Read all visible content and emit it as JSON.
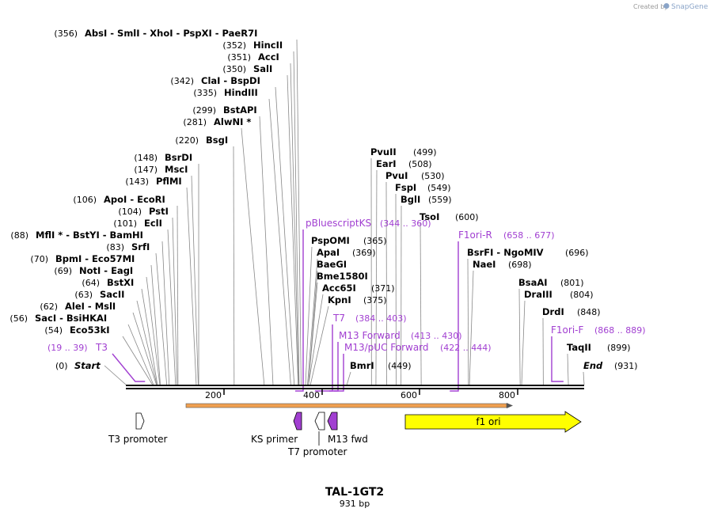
{
  "credit": {
    "prefix": "Created by",
    "brand": "SnapGene"
  },
  "title": "TAL-1GT2",
  "length": "931 bp",
  "axis": {
    "start": 0,
    "end": 931,
    "ticks": [
      "200",
      "400",
      "600",
      "800"
    ]
  },
  "start_label": {
    "pos": "(0)",
    "name": "Start"
  },
  "end_label": {
    "name": "End",
    "pos": "(931)"
  },
  "left_sites": [
    {
      "pos": "(356)",
      "names": "AbsI  -  SmlI  -  XhoI  -  PspXI  -  PaeR7I",
      "bp": 356
    },
    {
      "pos": "(352)",
      "names": "HincII",
      "bp": 352
    },
    {
      "pos": "(351)",
      "names": "AccI",
      "bp": 351
    },
    {
      "pos": "(350)",
      "names": "SalI",
      "bp": 350
    },
    {
      "pos": "(342)",
      "names": "ClaI  -  BspDI",
      "bp": 342
    },
    {
      "pos": "(335)",
      "names": "HindIII",
      "bp": 335
    },
    {
      "pos": "(299)",
      "names": "BstAPI",
      "bp": 299
    },
    {
      "pos": "(281)",
      "names": "AlwNI *",
      "bp": 281
    },
    {
      "pos": "(220)",
      "names": "BsgI",
      "bp": 220
    },
    {
      "pos": "(148)",
      "names": "BsrDI",
      "bp": 148
    },
    {
      "pos": "(147)",
      "names": "MscI",
      "bp": 147
    },
    {
      "pos": "(143)",
      "names": "PflMI",
      "bp": 143
    },
    {
      "pos": "(106)",
      "names": "ApoI  -  EcoRI",
      "bp": 106
    },
    {
      "pos": "(104)",
      "names": "PstI",
      "bp": 104
    },
    {
      "pos": "(101)",
      "names": "EclI",
      "bp": 101
    },
    {
      "pos": "(88)",
      "names": "MflI *  -  BstYI  -  BamHI",
      "bp": 88
    },
    {
      "pos": "(83)",
      "names": "SrfI",
      "bp": 83
    },
    {
      "pos": "(70)",
      "names": "BpmI  -  Eco57MI",
      "bp": 70
    },
    {
      "pos": "(69)",
      "names": "NotI  -  EagI",
      "bp": 69
    },
    {
      "pos": "(64)",
      "names": "BstXI",
      "bp": 64
    },
    {
      "pos": "(63)",
      "names": "SacII",
      "bp": 63
    },
    {
      "pos": "(62)",
      "names": "AleI  -  MslI",
      "bp": 62
    },
    {
      "pos": "(56)",
      "names": "SacI  -  BsiHKAI",
      "bp": 56
    },
    {
      "pos": "(54)",
      "names": "Eco53kI",
      "bp": 54
    }
  ],
  "right_sites": [
    {
      "names": "PvuII",
      "pos": "(499)",
      "bp": 499
    },
    {
      "names": "EarI",
      "pos": "(508)",
      "bp": 508
    },
    {
      "names": "PvuI",
      "pos": "(530)",
      "bp": 530
    },
    {
      "names": "FspI",
      "pos": "(549)",
      "bp": 549
    },
    {
      "names": "BglI",
      "pos": "(559)",
      "bp": 559
    },
    {
      "names": "TsoI",
      "pos": "(600)",
      "bp": 600
    },
    {
      "names": "PspOMI",
      "pos": "(365)",
      "bp": 365
    },
    {
      "names": "ApaI",
      "pos": "(369)",
      "bp": 369
    },
    {
      "names": "BaeGI",
      "pos": "",
      "bp": 371
    },
    {
      "names": "Bme1580I",
      "pos": "",
      "bp": 371
    },
    {
      "names": "Acc65I",
      "pos": "(371)",
      "bp": 371
    },
    {
      "names": "KpnI",
      "pos": "(375)",
      "bp": 375
    },
    {
      "names": "BmrI",
      "pos": "(449)",
      "bp": 449
    },
    {
      "names": "BsrFI  -  NgoMIV",
      "pos": "(696)",
      "bp": 696
    },
    {
      "names": "NaeI",
      "pos": "(698)",
      "bp": 698
    },
    {
      "names": "BsaAI",
      "pos": "(801)",
      "bp": 801
    },
    {
      "names": "DraIII",
      "pos": "(804)",
      "bp": 804
    },
    {
      "names": "DrdI",
      "pos": "(848)",
      "bp": 848
    },
    {
      "names": "TaqII",
      "pos": "(899)",
      "bp": 899
    }
  ],
  "primers": [
    {
      "name": "T3",
      "range": "(19 .. 39)",
      "from": 19,
      "to": 39
    },
    {
      "name": "pBluescriptKS",
      "range": "(344 .. 360)",
      "from": 344,
      "to": 360
    },
    {
      "name": "T7",
      "range": "(384 .. 403)",
      "from": 384,
      "to": 403
    },
    {
      "name": "M13 Forward",
      "range": "(413 .. 430)",
      "from": 413,
      "to": 430
    },
    {
      "name": "M13/pUC Forward",
      "range": "(422 .. 444)",
      "from": 422,
      "to": 444
    },
    {
      "name": "F1ori-R",
      "range": "(658 .. 677)",
      "from": 658,
      "to": 677
    },
    {
      "name": "F1ori-F",
      "range": "(868 .. 889)",
      "from": 868,
      "to": 889
    }
  ],
  "features": [
    {
      "name": "T3 promoter"
    },
    {
      "name": "KS primer"
    },
    {
      "name": "T7 promoter"
    },
    {
      "name": "M13 fwd"
    },
    {
      "name": "f1 ori"
    }
  ],
  "colors": {
    "primer": "#a13fd1",
    "f1ori": "#ffff00",
    "orf_bar": "#f0a050",
    "backbone": "#000000",
    "leader": "#888888"
  }
}
